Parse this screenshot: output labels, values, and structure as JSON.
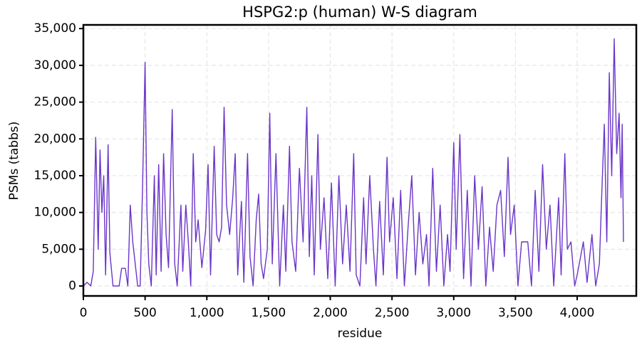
{
  "chart_data": {
    "type": "line",
    "title": "HSPG2:p (human) W-S diagram",
    "x_label": "residue",
    "y_label": "PSMs (tabbs)",
    "x": [
      0,
      30,
      60,
      80,
      100,
      120,
      135,
      150,
      165,
      180,
      200,
      215,
      240,
      290,
      310,
      340,
      360,
      380,
      400,
      420,
      440,
      460,
      480,
      500,
      515,
      530,
      550,
      575,
      590,
      610,
      630,
      650,
      670,
      690,
      720,
      740,
      760,
      790,
      805,
      830,
      850,
      870,
      890,
      910,
      930,
      960,
      990,
      1010,
      1030,
      1060,
      1080,
      1100,
      1120,
      1140,
      1160,
      1185,
      1210,
      1230,
      1250,
      1280,
      1300,
      1330,
      1350,
      1375,
      1400,
      1420,
      1440,
      1460,
      1490,
      1510,
      1530,
      1560,
      1590,
      1620,
      1640,
      1670,
      1690,
      1720,
      1750,
      1780,
      1810,
      1830,
      1850,
      1870,
      1900,
      1920,
      1950,
      1980,
      2010,
      2040,
      2070,
      2100,
      2130,
      2160,
      2190,
      2210,
      2240,
      2270,
      2290,
      2320,
      2350,
      2370,
      2400,
      2430,
      2460,
      2480,
      2510,
      2540,
      2570,
      2600,
      2630,
      2660,
      2690,
      2720,
      2750,
      2780,
      2800,
      2830,
      2860,
      2890,
      2920,
      2950,
      2970,
      3000,
      3020,
      3050,
      3080,
      3110,
      3140,
      3170,
      3200,
      3230,
      3260,
      3290,
      3320,
      3350,
      3380,
      3410,
      3440,
      3460,
      3490,
      3520,
      3550,
      3600,
      3630,
      3660,
      3690,
      3720,
      3750,
      3780,
      3810,
      3850,
      3870,
      3900,
      3920,
      3950,
      3980,
      4000,
      4050,
      4080,
      4120,
      4150,
      4180,
      4200,
      4220,
      4240,
      4260,
      4280,
      4300,
      4320,
      4340,
      4355,
      4365,
      4375
    ],
    "series": [
      {
        "name": "PSMs",
        "color": "#6a35c9",
        "values": [
          0,
          500,
          0,
          2000,
          20200,
          5000,
          18500,
          10000,
          15000,
          1500,
          19200,
          4500,
          0,
          0,
          2400,
          2400,
          0,
          11000,
          6000,
          3000,
          0,
          0,
          14000,
          30400,
          10000,
          3000,
          0,
          15000,
          1500,
          16500,
          2000,
          18000,
          7000,
          2500,
          24000,
          3000,
          0,
          11000,
          2000,
          11000,
          6000,
          0,
          18000,
          6000,
          9000,
          2500,
          7500,
          16500,
          1500,
          19000,
          7000,
          6000,
          8000,
          24300,
          11000,
          7000,
          12000,
          18000,
          1500,
          11500,
          500,
          18000,
          4000,
          0,
          9000,
          12500,
          3000,
          1000,
          5000,
          23500,
          3000,
          18000,
          0,
          11000,
          2000,
          19000,
          6000,
          2000,
          16000,
          6000,
          24300,
          4000,
          15000,
          1500,
          20600,
          5000,
          12000,
          1000,
          14000,
          0,
          15000,
          3000,
          11000,
          2000,
          18000,
          1500,
          0,
          12000,
          3000,
          15000,
          5000,
          0,
          11500,
          1500,
          17500,
          6000,
          12000,
          1000,
          13000,
          0,
          8000,
          15000,
          1500,
          10000,
          3000,
          7000,
          0,
          16000,
          2000,
          11000,
          0,
          7000,
          2000,
          19500,
          5000,
          20600,
          1000,
          13000,
          0,
          15000,
          5000,
          13500,
          0,
          8000,
          2000,
          11000,
          13000,
          4000,
          17500,
          7000,
          11000,
          0,
          6000,
          6000,
          0,
          13000,
          2000,
          16500,
          5000,
          11000,
          0,
          12000,
          1500,
          18000,
          5000,
          6000,
          0,
          1500,
          6000,
          500,
          7000,
          0,
          3000,
          13000,
          22000,
          6000,
          29000,
          15000,
          33600,
          18000,
          23500,
          12000,
          22000,
          6000
        ]
      }
    ],
    "xlim": [
      0,
      4479
    ],
    "ylim": [
      -1350,
      35500
    ],
    "xticks": [
      0,
      500,
      {
        "value": 1000,
        "label": "1,000"
      },
      {
        "value": 1500,
        "label": "1,500"
      },
      {
        "value": 2000,
        "label": "2,000"
      },
      {
        "value": 2500,
        "label": "2,500"
      },
      {
        "value": 3000,
        "label": "3,000"
      },
      {
        "value": 3500,
        "label": "3,500"
      },
      {
        "value": 4000,
        "label": "4,000"
      }
    ],
    "yticks": [
      0,
      {
        "value": 5000,
        "label": "5,000"
      },
      {
        "value": 10000,
        "label": "10,000"
      },
      {
        "value": 15000,
        "label": "15,000"
      },
      {
        "value": 20000,
        "label": "20,000"
      },
      {
        "value": 25000,
        "label": "25,000"
      },
      {
        "value": 30000,
        "label": "30,000"
      },
      {
        "value": 35000,
        "label": "35,000"
      }
    ],
    "grid": true
  }
}
